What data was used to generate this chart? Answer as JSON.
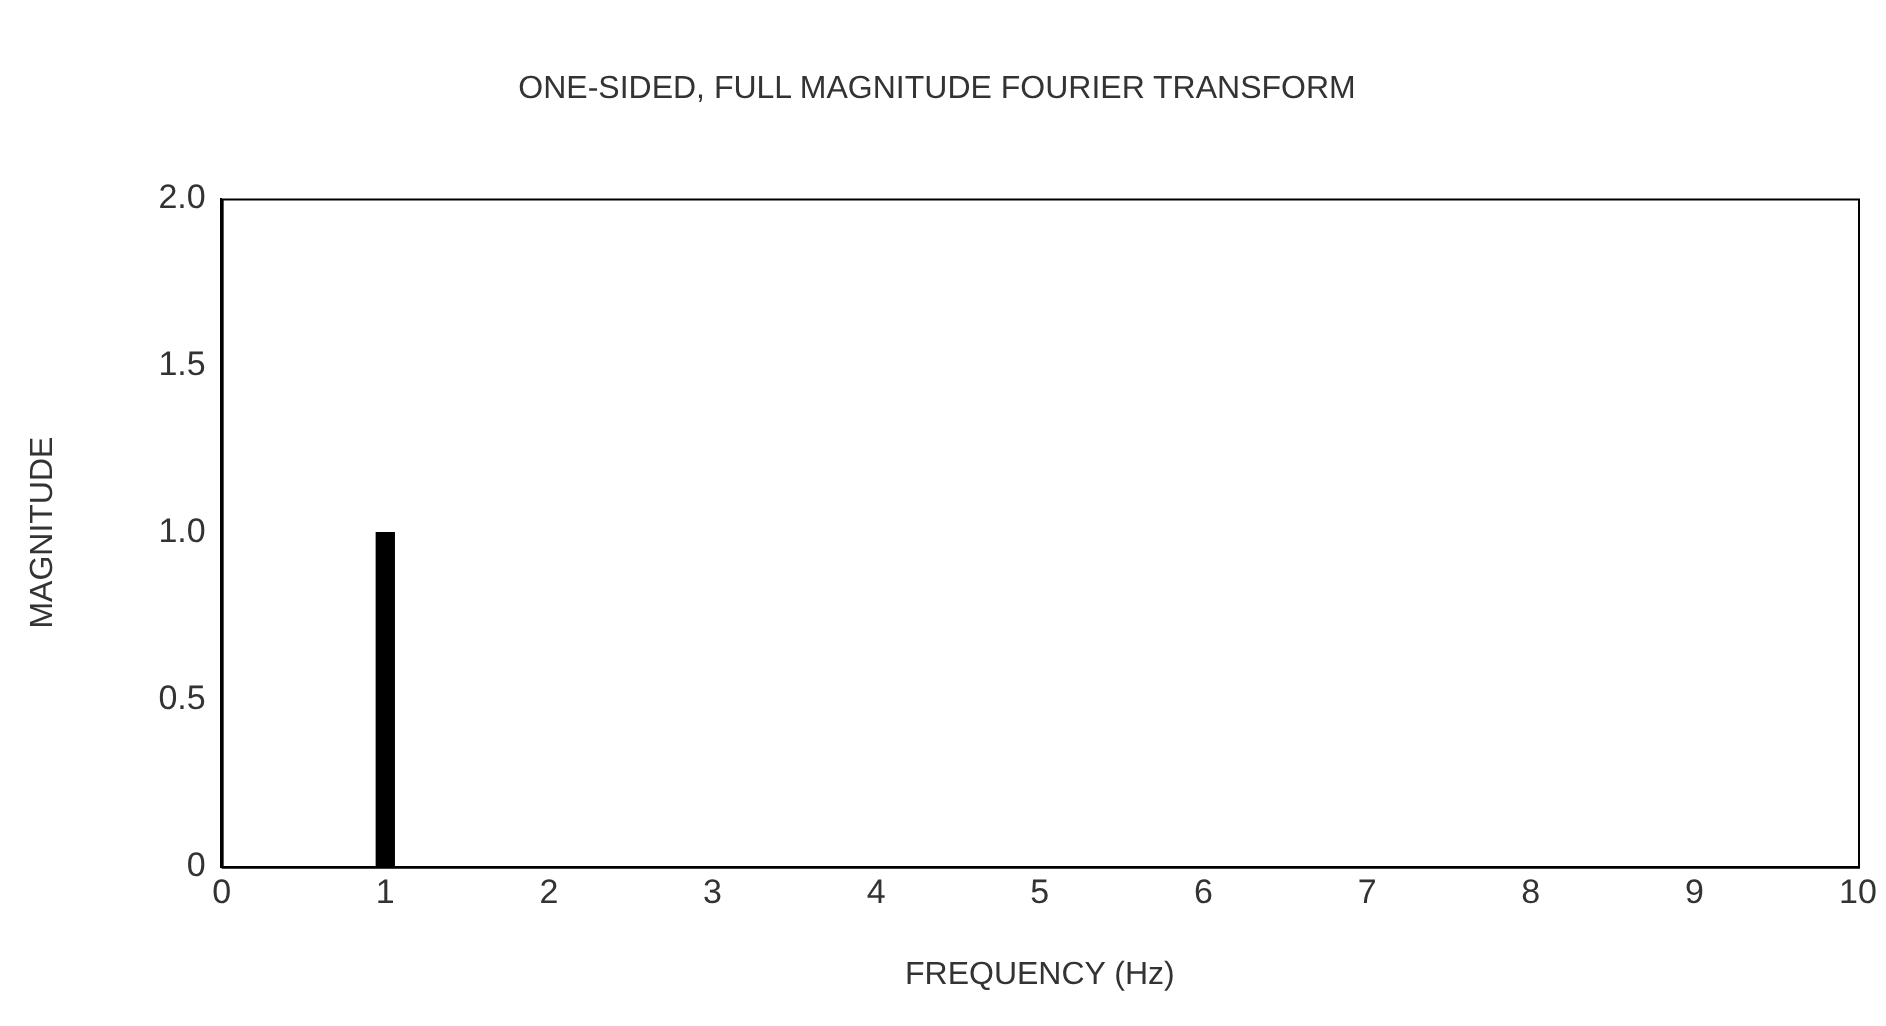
{
  "chart_data": {
    "type": "bar",
    "title": "ONE-SIDED, FULL MAGNITUDE FOURIER TRANSFORM",
    "xlabel": "FREQUENCY (Hz)",
    "ylabel": "MAGNITUDE",
    "x": [
      1
    ],
    "values": [
      1
    ],
    "color": "#000000",
    "xlim": [
      0,
      10
    ],
    "xticks": [
      0,
      1,
      2,
      3,
      4,
      5,
      6,
      7,
      8,
      9,
      10
    ],
    "ylim": [
      0,
      2
    ],
    "yticks": [
      0,
      0.5,
      {
        "value": 1,
        "label": "1.0"
      },
      1.5,
      {
        "value": 2,
        "label": "2.0"
      }
    ],
    "grid": false,
    "legend": false
  }
}
